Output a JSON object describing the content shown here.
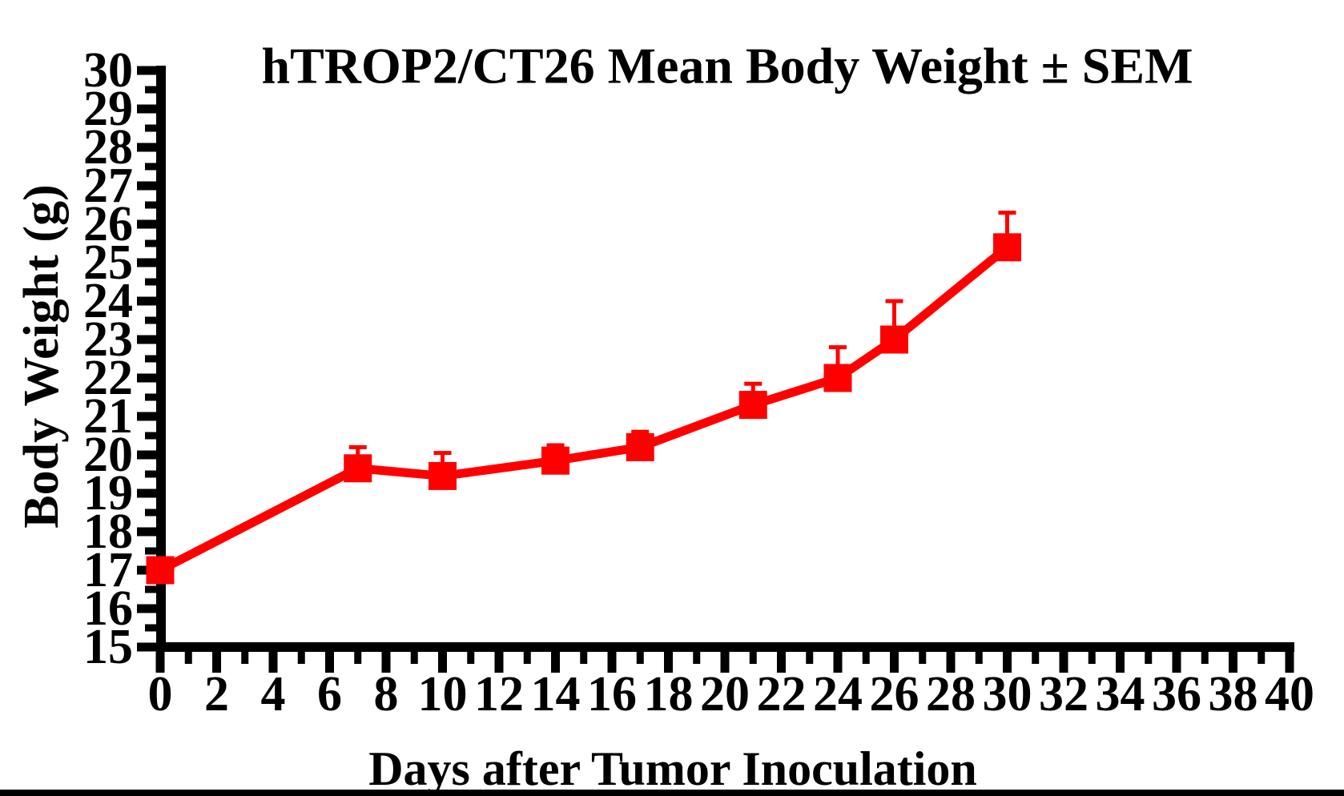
{
  "chart_data": {
    "type": "line",
    "title": "hTROP2/CT26 Mean Body Weight ± SEM",
    "xlabel": "Days after Tumor Inoculation",
    "ylabel": "Body Weight (g)",
    "x": [
      0,
      7,
      10,
      14,
      17,
      21,
      24,
      26,
      30
    ],
    "series": [
      {
        "name": "hTROP2/CT26",
        "values": [
          17.0,
          19.65,
          19.45,
          19.85,
          20.2,
          21.3,
          22.0,
          23.0,
          25.4
        ],
        "sem_upper": [
          0,
          0.55,
          0.6,
          0.4,
          0.4,
          0.55,
          0.8,
          1.0,
          0.9
        ],
        "color": "#FF0000",
        "marker": "square"
      }
    ],
    "xlim": [
      0,
      40
    ],
    "ylim": [
      15,
      30
    ],
    "x_tick_labels": [
      0,
      2,
      4,
      6,
      8,
      10,
      12,
      14,
      16,
      18,
      20,
      22,
      24,
      26,
      28,
      30,
      32,
      34,
      36,
      38,
      40
    ],
    "y_tick_labels": [
      15,
      16,
      17,
      18,
      19,
      20,
      21,
      22,
      23,
      24,
      25,
      26,
      27,
      28,
      29,
      30
    ],
    "x_major_tick_step": 2,
    "x_minor_tick_step": 1,
    "y_major_tick_step": 1,
    "y_minor_tick_step": 0.5,
    "error_bars": "upper-only",
    "grid": false,
    "legend": false,
    "axis_color": "#000000"
  }
}
